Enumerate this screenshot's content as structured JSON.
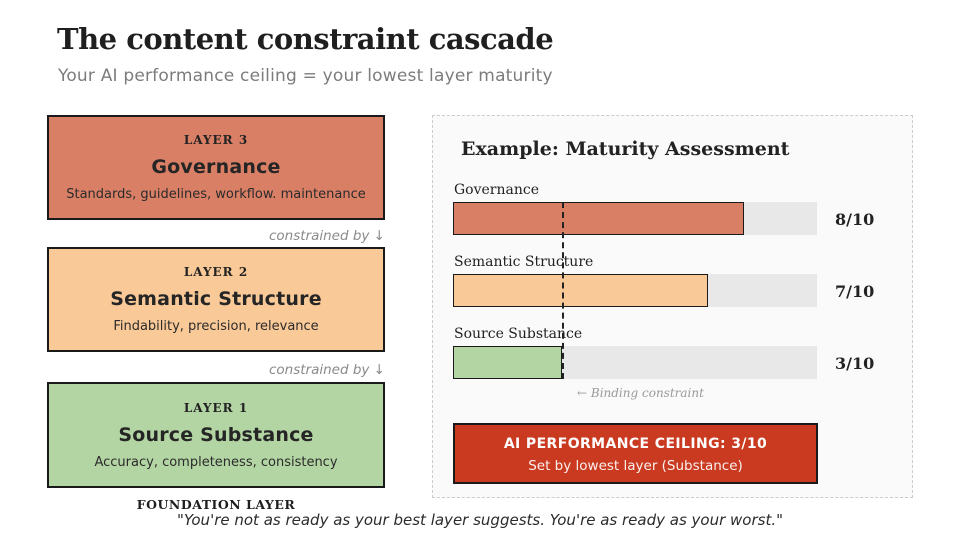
{
  "slide": {
    "title": "The content constraint cascade",
    "subtitle": "Your AI performance ceiling = your lowest layer maturity",
    "footer_quote": "\"You're not as ready as your best layer suggests. You're as ready as your worst.\""
  },
  "cascade": {
    "constraint_label": "constrained by ↓",
    "foundation_label": "FOUNDATION LAYER",
    "layers": [
      {
        "tag": "LAYER 3",
        "name": "Governance",
        "description": "Standards, guidelines, workflow. maintenance",
        "color": "#D97F66"
      },
      {
        "tag": "LAYER 2",
        "name": "Semantic Structure",
        "description": "Findability, precision, relevance",
        "color": "#F9C997"
      },
      {
        "tag": "LAYER 1",
        "name": "Source Substance",
        "description": "Accuracy, completeness, consistency",
        "color": "#B3D5A3"
      }
    ]
  },
  "assessment": {
    "title": "Example: Maturity Assessment",
    "binding_note": "← Binding constraint",
    "bars": [
      {
        "label": "Governance",
        "score_label": "8/10",
        "width_pct": "80%",
        "color": "#D97F66"
      },
      {
        "label": "Semantic Structure",
        "score_label": "7/10",
        "width_pct": "70%",
        "color": "#F9C997"
      },
      {
        "label": "Source Substance",
        "score_label": "3/10",
        "width_pct": "30%",
        "color": "#B3D5A3"
      }
    ],
    "chart_data": {
      "type": "bar",
      "title": "Example: Maturity Assessment",
      "categories": [
        "Governance",
        "Semantic Structure",
        "Source Substance"
      ],
      "values": [
        8,
        7,
        3
      ],
      "value_labels": [
        "8/10",
        "7/10",
        "3/10"
      ],
      "xlim": [
        0,
        10
      ],
      "orientation": "horizontal",
      "annotation": "← Binding constraint",
      "annotation_x": 3
    },
    "ceiling": {
      "headline": "AI PERFORMANCE CEILING: 3/10",
      "subline": "Set by lowest layer (Substance)",
      "color": "#C93A20"
    }
  }
}
